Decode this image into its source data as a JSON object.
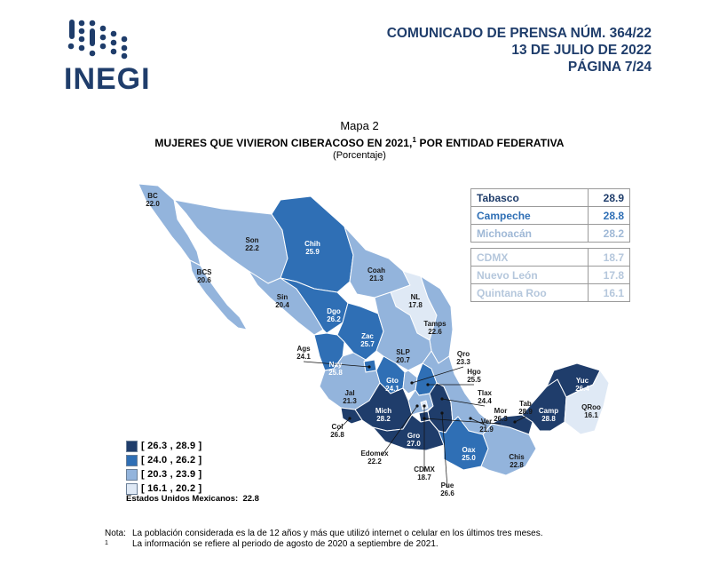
{
  "header": {
    "logo_text": "INEGI",
    "press_line1": "COMUNICADO DE PRENSA NÚM. 364/22",
    "press_line2": "13 DE JULIO DE 2022",
    "press_line3": "PÁGINA 7/24"
  },
  "map": {
    "number": "Mapa 2",
    "title": "MUJERES QUE VIVIERON CIBERACOSO EN 2021,",
    "title_sup": "1",
    "title_tail": " POR ENTIDAD FEDERATIVA",
    "unit": "(Porcentaje)",
    "national_label": "Estados Unidos Mexicanos:",
    "national_value": "22.8"
  },
  "colors": {
    "class1": "#1f3d6b",
    "class2": "#2f6fb5",
    "class3": "#93b4dc",
    "class4": "#dfe9f5"
  },
  "legend": [
    {
      "range": "[ 26.3 , 28.9 ]",
      "class": "class1"
    },
    {
      "range": "[ 24.0 , 26.2 ]",
      "class": "class2"
    },
    {
      "range": "[ 20.3 , 23.9 ]",
      "class": "class3"
    },
    {
      "range": "[ 16.1 , 20.2 ]",
      "class": "class4"
    }
  ],
  "ranking": {
    "top": [
      {
        "state": "Tabasco",
        "value": "28.9"
      },
      {
        "state": "Campeche",
        "value": "28.8"
      },
      {
        "state": "Michoacán",
        "value": "28.2"
      }
    ],
    "bottom": [
      {
        "state": "CDMX",
        "value": "18.7"
      },
      {
        "state": "Nuevo León",
        "value": "17.8"
      },
      {
        "state": "Quintana Roo",
        "value": "16.1"
      }
    ]
  },
  "states": [
    {
      "abbr": "BC",
      "value": "22.0"
    },
    {
      "abbr": "BCS",
      "value": "20.6"
    },
    {
      "abbr": "Son",
      "value": "22.2"
    },
    {
      "abbr": "Chih",
      "value": "25.9"
    },
    {
      "abbr": "Coah",
      "value": "21.3"
    },
    {
      "abbr": "NL",
      "value": "17.8"
    },
    {
      "abbr": "Tamps",
      "value": "22.6"
    },
    {
      "abbr": "Sin",
      "value": "20.4"
    },
    {
      "abbr": "Dgo",
      "value": "26.2"
    },
    {
      "abbr": "Zac",
      "value": "25.7"
    },
    {
      "abbr": "SLP",
      "value": "20.7"
    },
    {
      "abbr": "Ags",
      "value": "24.1"
    },
    {
      "abbr": "Nay",
      "value": "25.8"
    },
    {
      "abbr": "Jal",
      "value": "21.3"
    },
    {
      "abbr": "Gto",
      "value": "24.1"
    },
    {
      "abbr": "Qro",
      "value": "23.3"
    },
    {
      "abbr": "Hgo",
      "value": "25.5"
    },
    {
      "abbr": "Tlax",
      "value": "24.4"
    },
    {
      "abbr": "Mor",
      "value": "26.3"
    },
    {
      "abbr": "Mich",
      "value": "28.2"
    },
    {
      "abbr": "Col",
      "value": "26.8"
    },
    {
      "abbr": "Edomex",
      "value": "22.2"
    },
    {
      "abbr": "Gro",
      "value": "27.0"
    },
    {
      "abbr": "CDMX",
      "value": "18.7"
    },
    {
      "abbr": "Pue",
      "value": "26.6"
    },
    {
      "abbr": "Ver",
      "value": "21.9"
    },
    {
      "abbr": "Oax",
      "value": "25.0"
    },
    {
      "abbr": "Chis",
      "value": "22.8"
    },
    {
      "abbr": "Tab",
      "value": "28.9"
    },
    {
      "abbr": "Camp",
      "value": "28.8"
    },
    {
      "abbr": "Yuc",
      "value": "26.4"
    },
    {
      "abbr": "QRoo",
      "value": "16.1"
    }
  ],
  "notes": {
    "note_key": "Nota:",
    "note_text": "La población considerada es la de 12 años y más que utilizó internet o celular en los últimos tres meses.",
    "foot_key": "1",
    "foot_text": "La información se refiere al periodo de agosto de 2020 a septiembre de 2021."
  }
}
